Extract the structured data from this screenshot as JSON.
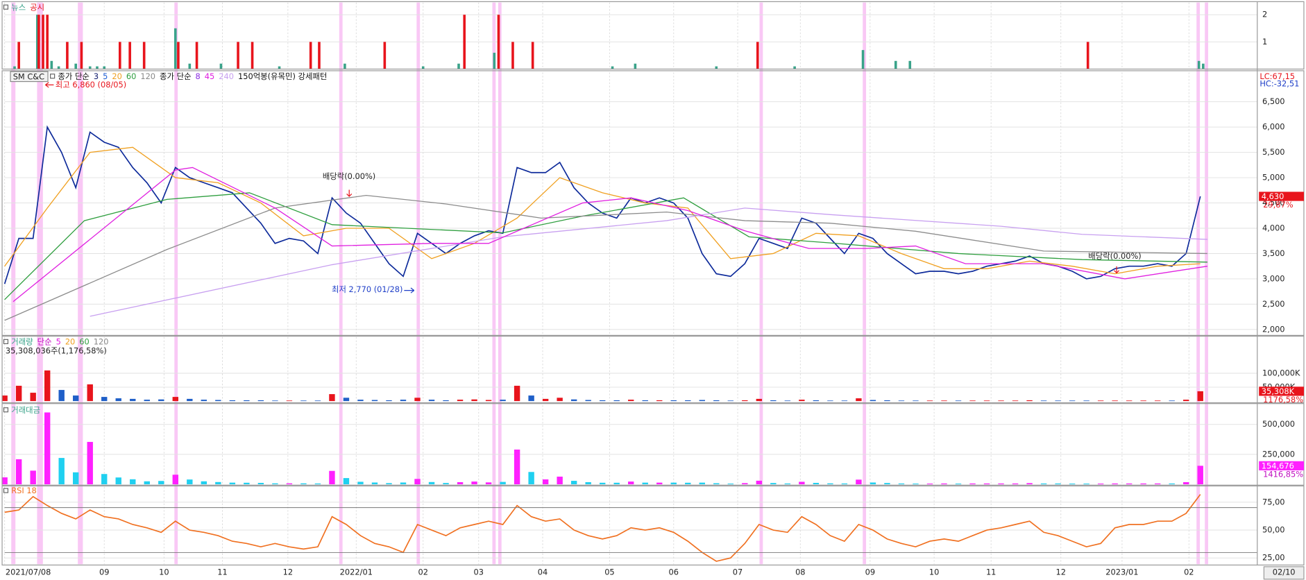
{
  "chart_data": [
    {
      "type": "bar",
      "xlim": [
        0,
        88
      ],
      "ylim": [
        0,
        2.45
      ],
      "yticks": [
        1,
        2
      ],
      "series": [
        {
          "name": "뉴스",
          "color": "#3aa38a",
          "x": [
            0.7,
            2.3,
            3.3,
            3.8,
            5.0,
            6.0,
            6.5,
            7.0,
            12.0,
            13.0,
            15.2,
            19.3,
            23.9,
            29.4,
            31.9,
            34.4,
            42.7,
            44.3,
            50.0,
            55.5,
            60.3,
            62.6,
            63.6,
            83.9,
            84.2
          ],
          "values": [
            0.1,
            2,
            0.3,
            0.1,
            0.2,
            0.1,
            0.1,
            0.1,
            1.5,
            0.2,
            0.2,
            0.1,
            0.2,
            0.1,
            0.2,
            0.6,
            0.1,
            0.2,
            0.1,
            0.1,
            0.7,
            0.3,
            0.3,
            0.3,
            0.2
          ]
        },
        {
          "name": "공시",
          "color": "#e8141c",
          "x": [
            1.0,
            2.4,
            2.7,
            3.0,
            4.4,
            5.4,
            8.1,
            8.8,
            9.8,
            12.2,
            13.5,
            16.4,
            17.4,
            21.5,
            22.1,
            26.7,
            32.3,
            34.7,
            35.7,
            37.1,
            52.9,
            76.1
          ],
          "values": [
            1,
            2,
            2,
            2,
            1,
            1,
            1,
            1,
            1,
            1,
            1,
            1,
            1,
            1,
            1,
            1,
            2,
            2,
            1,
            1,
            1,
            1
          ]
        }
      ]
    },
    {
      "type": "line",
      "title": "SM C&C",
      "xlim": [
        0,
        88
      ],
      "ylim": [
        1900,
        7080
      ],
      "yticks": [
        {
          "value": 2000,
          "label": "2,000"
        },
        {
          "value": 2500,
          "label": "2,500"
        },
        {
          "value": 3000,
          "label": "3,000"
        },
        {
          "value": 3500,
          "label": "3,500"
        },
        {
          "value": 4000,
          "label": "4,000"
        },
        {
          "value": 4500,
          "label": "4,500"
        },
        {
          "value": 5000,
          "label": "5,000"
        },
        {
          "value": 5500,
          "label": "5,500"
        },
        {
          "value": 6000,
          "label": "6,000"
        },
        {
          "value": 6500,
          "label": "6,500"
        }
      ],
      "legend": [
        {
          "text": "종가 단순",
          "color": "#111111"
        },
        {
          "text": "3",
          "color": "#101c6e"
        },
        {
          "text": "5",
          "color": "#1f5fd6"
        },
        {
          "text": "20",
          "color": "#f0a020"
        },
        {
          "text": "60",
          "color": "#2e9e3e"
        },
        {
          "text": "120",
          "color": "#888888"
        },
        {
          "text": "종가 단순",
          "color": "#111111"
        },
        {
          "text": "8",
          "color": "#8a2be2"
        },
        {
          "text": "45",
          "color": "#e020e0"
        },
        {
          "text": "240",
          "color": "#c8a0f0"
        },
        {
          "text": "150억봉(유목민) 강세패턴",
          "color": "#111111"
        }
      ],
      "annotations": [
        "최고 6,860 (08/05)",
        "최저 2,770 (01/28)",
        "배당락(0.00%)",
        "배당락(0.00%)"
      ],
      "lc": "LC:67,15",
      "hc": "HC:-32,51",
      "last_label": "4,630",
      "last_change": "29,87%",
      "last_label_color": "#e8141c",
      "series": [
        {
          "color": "#0d2a9a",
          "values": [
            2900,
            3800,
            3800,
            6000,
            5500,
            4800,
            5900,
            5700,
            5600,
            5200,
            4900,
            4500,
            5200,
            5000,
            4900,
            4800,
            4700,
            4400,
            4100,
            3700,
            3800,
            3750,
            3500,
            4600,
            4300,
            4100,
            3700,
            3300,
            3050,
            3900,
            3700,
            3500,
            3700,
            3850,
            3950,
            3900,
            5200,
            5100,
            5100,
            5300,
            4800,
            4500,
            4300,
            4200,
            4600,
            4500,
            4600,
            4500,
            4200,
            3500,
            3100,
            3050,
            3300,
            3800,
            3700,
            3600,
            4200,
            4100,
            3800,
            3500,
            3900,
            3800,
            3500,
            3300,
            3100,
            3150,
            3150,
            3100,
            3150,
            3250,
            3300,
            3350,
            3450,
            3300,
            3250,
            3150,
            3000,
            3050,
            3200,
            3250,
            3250,
            3300,
            3250,
            3500,
            4630
          ]
        },
        {
          "color": "#f0a020",
          "x": [
            0,
            3,
            6,
            9,
            12,
            15,
            18,
            21,
            24,
            27,
            30,
            33,
            36,
            39,
            42,
            45,
            48,
            51,
            54,
            57,
            60,
            63,
            66,
            69,
            72,
            75,
            78,
            81,
            84
          ],
          "values": [
            3250,
            4400,
            5500,
            5600,
            5000,
            4900,
            4500,
            3850,
            4000,
            4000,
            3400,
            3700,
            4200,
            5000,
            4700,
            4500,
            4400,
            3400,
            3500,
            3900,
            3850,
            3500,
            3200,
            3200,
            3350,
            3250,
            3100,
            3250,
            3300
          ]
        },
        {
          "color": "#2e9e3e",
          "x": [
            0,
            5.6,
            11.4,
            17.2,
            23,
            29,
            35,
            40.6,
            47.7,
            52.3,
            58,
            67,
            75.7,
            84.5
          ],
          "values": [
            2590,
            4150,
            4570,
            4700,
            4070,
            3990,
            3910,
            4240,
            4600,
            3830,
            3710,
            3500,
            3380,
            3330
          ]
        },
        {
          "color": "#8c8c8c",
          "x": [
            0,
            11.4,
            19,
            25.4,
            31,
            37.7,
            46.5,
            52,
            58,
            64,
            73,
            84.5
          ],
          "values": [
            2180,
            3580,
            4400,
            4650,
            4480,
            4200,
            4320,
            4150,
            4100,
            3940,
            3550,
            3500
          ]
        },
        {
          "color": "#c8a0f0",
          "x": [
            6,
            23,
            35,
            46.5,
            52,
            58,
            70,
            75.7,
            84.5
          ],
          "values": [
            2260,
            3280,
            3830,
            4150,
            4400,
            4270,
            4040,
            3880,
            3780
          ]
        },
        {
          "color": "#e020e0",
          "x": [
            0.6,
            12,
            13.2,
            19,
            23,
            30,
            34,
            40.6,
            44,
            48,
            52,
            56.5,
            60.5,
            64,
            67.5,
            73,
            78.7,
            84.5
          ],
          "values": [
            2550,
            5150,
            5200,
            4400,
            3650,
            3700,
            3700,
            4500,
            4600,
            4350,
            3950,
            3600,
            3600,
            3650,
            3300,
            3300,
            3000,
            3250
          ]
        }
      ]
    },
    {
      "type": "bar",
      "xlim": [
        0,
        88
      ],
      "ylim": [
        0,
        230000000
      ],
      "yticks": [
        {
          "value": 50000000,
          "label": "50,000K"
        },
        {
          "value": 100000000,
          "label": "100,000K"
        }
      ],
      "legend": [
        {
          "text": "거래량",
          "color": "#3aa38a"
        },
        {
          "text": "단순",
          "color": "#c000c0"
        },
        {
          "text": "5",
          "color": "#e020e0"
        },
        {
          "text": "20",
          "color": "#f0a020"
        },
        {
          "text": "60",
          "color": "#2e9e3e"
        },
        {
          "text": "120",
          "color": "#888888"
        }
      ],
      "subtitle": "35,308,036주(1,176,58%)",
      "last_label": "35,308K",
      "last_change": "1176,58%",
      "last_label_color": "#e8141c",
      "series": [
        {
          "up_color": "#e8141c",
          "down_color": "#1f5fc8",
          "values": [
            20000000,
            55000000,
            30000000,
            110000000,
            40000000,
            20000000,
            60000000,
            15000000,
            10000000,
            8000000,
            5000000,
            6000000,
            15000000,
            8000000,
            5000000,
            4000000,
            3000000,
            3000000,
            3000000,
            2000000,
            2000000,
            2000000,
            2000000,
            25000000,
            12000000,
            5000000,
            4000000,
            3000000,
            5000000,
            12000000,
            5000000,
            3000000,
            5000000,
            6000000,
            4000000,
            5000000,
            55000000,
            20000000,
            8000000,
            12000000,
            6000000,
            4000000,
            3000000,
            3000000,
            5000000,
            3000000,
            3000000,
            3000000,
            3000000,
            4000000,
            3000000,
            2000000,
            3000000,
            8000000,
            3000000,
            2000000,
            5000000,
            3000000,
            2000000,
            2000000,
            10000000,
            4000000,
            3000000,
            2000000,
            2000000,
            2000000,
            2000000,
            2000000,
            2000000,
            2000000,
            2000000,
            2000000,
            3000000,
            2000000,
            2000000,
            2000000,
            2000000,
            2000000,
            2000000,
            2000000,
            2000000,
            2000000,
            2000000,
            5000000,
            35308036
          ]
        }
      ]
    },
    {
      "type": "bar",
      "xlim": [
        0,
        88
      ],
      "ylim": [
        0,
        660000
      ],
      "yticks": [
        {
          "value": 250000,
          "label": "250,000"
        },
        {
          "value": 500000,
          "label": "500,000"
        }
      ],
      "legend": [
        {
          "text": "거래대금",
          "color": "#3aa38a"
        }
      ],
      "last_label": "154,676",
      "last_change": "1416,85%",
      "last_label_color": "#ff20ff",
      "series": [
        {
          "up_color": "#ff20ff",
          "down_color": "#20d0f0",
          "values": [
            58000,
            209000,
            114000,
            600000,
            220000,
            100000,
            354000,
            86000,
            57000,
            42000,
            25000,
            28000,
            80000,
            40000,
            25000,
            19000,
            14000,
            13000,
            12000,
            8000,
            8000,
            8000,
            7000,
            112000,
            52000,
            21000,
            15000,
            10000,
            15000,
            45000,
            19000,
            11000,
            18000,
            23000,
            16000,
            20000,
            290000,
            103000,
            41000,
            64000,
            29000,
            18000,
            13000,
            13000,
            23000,
            14000,
            14000,
            14000,
            13000,
            14000,
            9000,
            6000,
            10000,
            30000,
            11000,
            7000,
            21000,
            12000,
            8000,
            7000,
            39000,
            15000,
            11000,
            7000,
            6000,
            6000,
            7000,
            6000,
            7000,
            7000,
            7000,
            7000,
            10000,
            7000,
            7000,
            6000,
            6000,
            6000,
            7000,
            7000,
            7000,
            7000,
            7000,
            18000,
            154676
          ]
        }
      ]
    },
    {
      "type": "line",
      "xlim": [
        0,
        88
      ],
      "ylim": [
        19.4,
        88.8
      ],
      "yticks": [
        {
          "value": 25,
          "label": "25,00"
        },
        {
          "value": 50,
          "label": "50,00"
        },
        {
          "value": 75,
          "label": "75,00"
        }
      ],
      "legend": [
        {
          "text": "RSI 18",
          "color": "#f07020"
        }
      ],
      "series": [
        {
          "color": "#f07020",
          "values": [
            66,
            68,
            80,
            72,
            65,
            60,
            68,
            62,
            60,
            55,
            52,
            48,
            58,
            50,
            48,
            45,
            40,
            38,
            35,
            38,
            35,
            33,
            35,
            62,
            55,
            45,
            38,
            35,
            30,
            55,
            50,
            45,
            52,
            55,
            58,
            55,
            72,
            62,
            58,
            60,
            50,
            45,
            42,
            45,
            52,
            50,
            52,
            48,
            40,
            30,
            22,
            25,
            38,
            55,
            50,
            48,
            62,
            55,
            45,
            40,
            55,
            50,
            42,
            38,
            35,
            40,
            42,
            40,
            45,
            50,
            52,
            55,
            58,
            48,
            45,
            40,
            35,
            38,
            52,
            55,
            55,
            58,
            58,
            65,
            82
          ]
        }
      ],
      "xticks": [
        {
          "value": 0,
          "label": "2021/07/08"
        },
        {
          "value": 7,
          "label": "09"
        },
        {
          "value": 11.2,
          "label": "10"
        },
        {
          "value": 15.3,
          "label": "11"
        },
        {
          "value": 19.9,
          "label": "12"
        },
        {
          "value": 24.7,
          "label": "2022/01"
        },
        {
          "value": 29.4,
          "label": "02"
        },
        {
          "value": 33.3,
          "label": "03"
        },
        {
          "value": 37.8,
          "label": "04"
        },
        {
          "value": 42.5,
          "label": "05"
        },
        {
          "value": 47,
          "label": "06"
        },
        {
          "value": 51.5,
          "label": "07"
        },
        {
          "value": 55.9,
          "label": "08"
        },
        {
          "value": 60.8,
          "label": "09"
        },
        {
          "value": 65.3,
          "label": "10"
        },
        {
          "value": 69.3,
          "label": "11"
        },
        {
          "value": 74.2,
          "label": "12"
        },
        {
          "value": 78.5,
          "label": "2023/01"
        },
        {
          "value": 83.2,
          "label": "02"
        }
      ],
      "end_label": "02/10"
    }
  ]
}
